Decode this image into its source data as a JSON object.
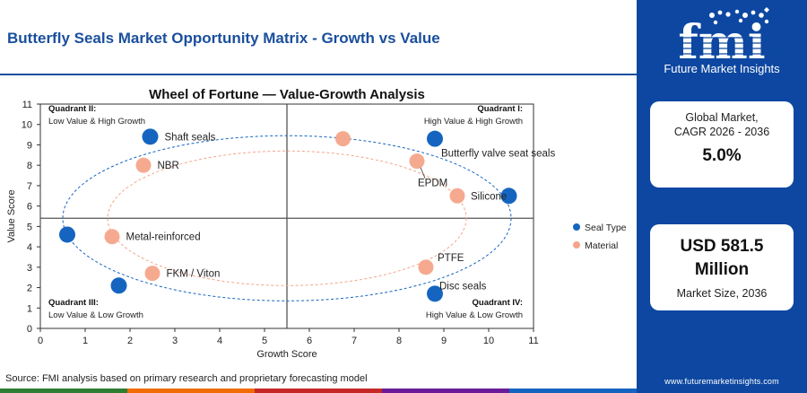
{
  "header": {
    "title": "Butterfly Seals Market Opportunity Matrix - Growth vs Value"
  },
  "chart_data": {
    "type": "scatter",
    "title": "Wheel of Fortune — Value-Growth Analysis",
    "xlabel": "Growth Score",
    "ylabel": "Value Score",
    "xlim": [
      0,
      11
    ],
    "ylim": [
      0,
      11
    ],
    "x_ticks": [
      0,
      1,
      2,
      3,
      4,
      5,
      6,
      7,
      8,
      9,
      10,
      11
    ],
    "y_ticks": [
      0,
      1,
      2,
      3,
      4,
      5,
      6,
      7,
      8,
      9,
      10,
      11
    ],
    "divider_x": 5.5,
    "divider_y": 5.4,
    "legend_position": "right",
    "grid": false,
    "quadrants": [
      {
        "name": "Quadrant II:",
        "desc": "Low Value & High Growth",
        "corner": "top-left"
      },
      {
        "name": "Quadrant I:",
        "desc": "High Value & High Growth",
        "corner": "top-right"
      },
      {
        "name": "Quadrant III:",
        "desc": "Low Value & Low Growth",
        "corner": "bottom-left"
      },
      {
        "name": "Quadrant IV:",
        "desc": "High Value & Low Growth",
        "corner": "bottom-right"
      }
    ],
    "series": [
      {
        "name": "Seal Type",
        "color": "#1565c0",
        "marker": "large-circle",
        "points": [
          {
            "label": "Shaft seals",
            "x": 2.45,
            "y": 9.4
          },
          {
            "label": "Butterfly valve seat seals",
            "x": 8.8,
            "y": 9.3
          },
          {
            "label": "",
            "x": 10.45,
            "y": 6.5
          },
          {
            "label": "",
            "x": 0.6,
            "y": 4.6
          },
          {
            "label": "",
            "x": 1.75,
            "y": 2.1
          },
          {
            "label": "Disc seals",
            "x": 8.8,
            "y": 1.7
          }
        ]
      },
      {
        "name": "Material",
        "color": "#f4a58a",
        "marker": "circle",
        "points": [
          {
            "label": "NBR",
            "x": 2.3,
            "y": 8.0
          },
          {
            "label": "",
            "x": 6.75,
            "y": 9.3
          },
          {
            "label": "EPDM",
            "x": 8.4,
            "y": 8.2
          },
          {
            "label": "Silicone",
            "x": 9.3,
            "y": 6.5
          },
          {
            "label": "Metal-reinforced",
            "x": 1.6,
            "y": 4.5
          },
          {
            "label": "FKM / Viton",
            "x": 2.5,
            "y": 2.7
          },
          {
            "label": "PTFE",
            "x": 8.6,
            "y": 3.0
          }
        ]
      }
    ],
    "rings": [
      {
        "series": "Seal Type",
        "center_x": 5.5,
        "center_y": 5.4,
        "radius_x": 5.0,
        "radius_y": 4.05
      },
      {
        "series": "Material",
        "center_x": 5.5,
        "center_y": 5.4,
        "radius_x": 4.0,
        "radius_y": 3.3
      }
    ]
  },
  "sidebar": {
    "logo_letters": "fmi",
    "logo_text": "Future Market Insights",
    "cagr_label_line1": "Global Market,",
    "cagr_label_line2": "CAGR 2026 - 2036",
    "cagr_value": "5.0%",
    "size_value_line1": "USD 581.5",
    "size_value_line2": "Million",
    "size_label": "Market Size, 2036",
    "website": "www.futuremarketinsights.com",
    "panel_color": "#0d47a1"
  },
  "footer": {
    "source": "Source: FMI analysis based on primary research and proprietary forecasting model",
    "bar_colors": [
      "#2e7d32",
      "#ef6c00",
      "#c62828",
      "#6a1b9a",
      "#1565c0"
    ]
  }
}
